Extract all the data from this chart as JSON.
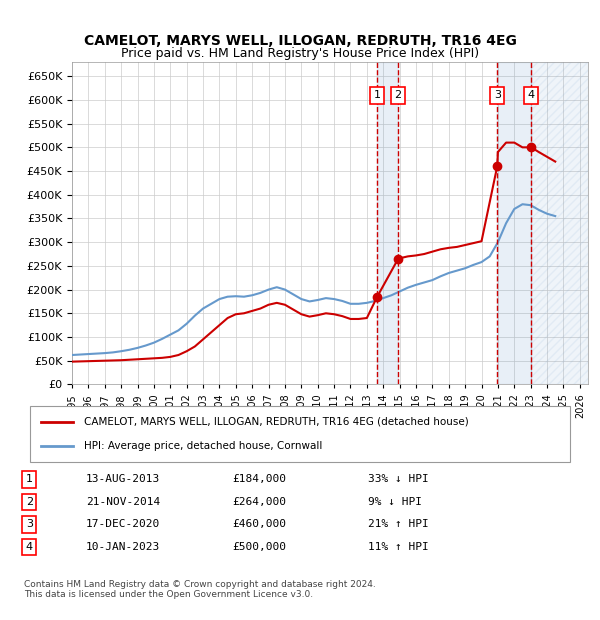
{
  "title": "CAMELOT, MARYS WELL, ILLOGAN, REDRUTH, TR16 4EG",
  "subtitle": "Price paid vs. HM Land Registry's House Price Index (HPI)",
  "ylim": [
    0,
    680000
  ],
  "yticks": [
    0,
    50000,
    100000,
    150000,
    200000,
    250000,
    300000,
    350000,
    400000,
    450000,
    500000,
    550000,
    600000,
    650000
  ],
  "xlim_start": 1995.0,
  "xlim_end": 2026.5,
  "sale_dates": [
    2013.617,
    2014.896,
    2020.959,
    2023.033
  ],
  "sale_prices": [
    184000,
    264000,
    460000,
    500000
  ],
  "sale_labels": [
    "1",
    "2",
    "3",
    "4"
  ],
  "legend_property": "CAMELOT, MARYS WELL, ILLOGAN, REDRUTH, TR16 4EG (detached house)",
  "legend_hpi": "HPI: Average price, detached house, Cornwall",
  "table_rows": [
    [
      "1",
      "13-AUG-2013",
      "£184,000",
      "33% ↓ HPI"
    ],
    [
      "2",
      "21-NOV-2014",
      "£264,000",
      "9% ↓ HPI"
    ],
    [
      "3",
      "17-DEC-2020",
      "£460,000",
      "21% ↑ HPI"
    ],
    [
      "4",
      "10-JAN-2023",
      "£500,000",
      "11% ↑ HPI"
    ]
  ],
  "footer": "Contains HM Land Registry data © Crown copyright and database right 2024.\nThis data is licensed under the Open Government Licence v3.0.",
  "property_color": "#cc0000",
  "hpi_color": "#6699cc",
  "shade_color": "#ddeeff",
  "hpi_years": [
    1995,
    1995.5,
    1996,
    1996.5,
    1997,
    1997.5,
    1998,
    1998.5,
    1999,
    1999.5,
    2000,
    2000.5,
    2001,
    2001.5,
    2002,
    2002.5,
    2003,
    2003.5,
    2004,
    2004.5,
    2005,
    2005.5,
    2006,
    2006.5,
    2007,
    2007.5,
    2008,
    2008.5,
    2009,
    2009.5,
    2010,
    2010.5,
    2011,
    2011.5,
    2012,
    2012.5,
    2013,
    2013.5,
    2014,
    2014.5,
    2015,
    2015.5,
    2016,
    2016.5,
    2017,
    2017.5,
    2018,
    2018.5,
    2019,
    2019.5,
    2020,
    2020.5,
    2021,
    2021.5,
    2022,
    2022.5,
    2023,
    2023.5,
    2024,
    2024.5
  ],
  "hpi_values": [
    62000,
    63000,
    64000,
    65000,
    66000,
    67500,
    70000,
    73000,
    77000,
    82000,
    88000,
    96000,
    105000,
    114000,
    128000,
    145000,
    160000,
    170000,
    180000,
    185000,
    186000,
    185000,
    188000,
    193000,
    200000,
    205000,
    200000,
    190000,
    180000,
    175000,
    178000,
    182000,
    180000,
    176000,
    170000,
    170000,
    172000,
    176000,
    182000,
    188000,
    196000,
    204000,
    210000,
    215000,
    220000,
    228000,
    235000,
    240000,
    245000,
    252000,
    258000,
    270000,
    300000,
    340000,
    370000,
    380000,
    378000,
    368000,
    360000,
    355000
  ],
  "prop_years": [
    1995,
    1995.5,
    1996,
    1996.5,
    1997,
    1997.5,
    1998,
    1998.5,
    1999,
    1999.5,
    2000,
    2000.5,
    2001,
    2001.5,
    2002,
    2002.5,
    2003,
    2003.5,
    2004,
    2004.5,
    2005,
    2005.5,
    2006,
    2006.5,
    2007,
    2007.5,
    2008,
    2008.5,
    2009,
    2009.5,
    2010,
    2010.5,
    2011,
    2011.5,
    2012,
    2012.5,
    2013,
    2013.617,
    2013.617,
    2014.896,
    2014.896,
    2015,
    2015.5,
    2016,
    2016.5,
    2017,
    2017.5,
    2018,
    2018.5,
    2019,
    2019.5,
    2020,
    2020.959,
    2020.959,
    2021,
    2021.5,
    2022,
    2022.5,
    2023.033,
    2023.033,
    2023.5,
    2024,
    2024.5
  ],
  "prop_values": [
    48000,
    48500,
    49000,
    49500,
    50000,
    50500,
    51000,
    52000,
    53000,
    54000,
    55000,
    56000,
    58000,
    62000,
    70000,
    80000,
    95000,
    110000,
    125000,
    140000,
    148000,
    150000,
    155000,
    160000,
    168000,
    172000,
    168000,
    158000,
    148000,
    143000,
    146000,
    150000,
    148000,
    144000,
    138000,
    138000,
    140000,
    184000,
    184000,
    264000,
    264000,
    266000,
    270000,
    272000,
    275000,
    280000,
    285000,
    288000,
    290000,
    294000,
    298000,
    302000,
    460000,
    460000,
    490000,
    510000,
    510000,
    500000,
    500000,
    500000,
    490000,
    480000,
    470000
  ]
}
